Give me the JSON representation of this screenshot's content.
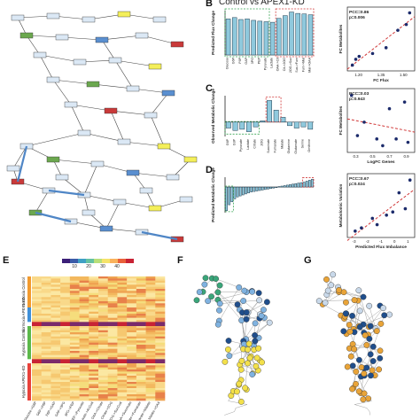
{
  "panels": {
    "B": "B",
    "C": "C",
    "D": "D",
    "E": "E",
    "F": "F",
    "G": "G"
  },
  "panel_b_title": "Control vs APEX1-KD",
  "map_labels": [],
  "heatmap": {
    "row_groups": [
      "Normoxia Control",
      "Normoxia APEX1-KD",
      "Hypoxia Control",
      "Hypoxia APEX1-KD"
    ],
    "row_group_colors": [
      "#f29a2e",
      "#3f8fd8",
      "#5bb84a",
      "#e8413a"
    ],
    "colorbar_ticks": [
      "10",
      "20",
      "30",
      "40"
    ],
    "columns": [
      "Glucose->G6P",
      "G6P->F6P",
      "F6P->GAP",
      "GAP->3PG",
      "3PG->PEP",
      "PEP->Pyruvate",
      "Pyruvate->AcCoA",
      "OAA->Citrate",
      "Citrate->2OG",
      "2OG->SucCoA",
      "SucCoA->Succinate",
      "Succinate->Fumarate",
      "Fumarate->Malate",
      "Malate->OAA"
    ]
  },
  "chart_data": [
    {
      "type": "bar",
      "panel": "B",
      "title": "Control vs APEX1-KD",
      "ylabel": "Predicted Flux Change",
      "categories": [
        "Glucose",
        "G6P",
        "F6P",
        "GAP",
        "3PG",
        "PEP",
        "Pyruvate",
        "Lactate",
        "OAA->Cit",
        "Cit->2OG",
        "2OG->Suc",
        "Suc->Fum",
        "Fum->Mal",
        "Mal->OAA"
      ],
      "values": [
        1.3,
        1.35,
        1.28,
        1.3,
        1.25,
        1.22,
        1.2,
        1.18,
        1.32,
        1.42,
        1.55,
        1.5,
        1.48,
        1.45
      ],
      "ylim": [
        0,
        1.6
      ],
      "highlight_green": [
        0,
        6
      ],
      "highlight_red": [
        8,
        13
      ]
    },
    {
      "type": "scatter",
      "panel": "B-right",
      "xlabel": "FC Flux",
      "ylabel": "FC Metabolites",
      "annotation": [
        "PCC=0.86",
        "p=0.006"
      ],
      "x_ticks": [
        "1.20",
        "1.35",
        "1.50"
      ],
      "points": [
        [
          1.18,
          0.6
        ],
        [
          1.2,
          0.8
        ],
        [
          1.22,
          0.9
        ],
        [
          1.3,
          1.0
        ],
        [
          1.38,
          1.2
        ],
        [
          1.45,
          1.8
        ],
        [
          1.5,
          2.0
        ],
        [
          1.52,
          2.4
        ]
      ],
      "xlim": [
        1.15,
        1.55
      ],
      "ylim": [
        0.4,
        2.6
      ]
    },
    {
      "type": "bar",
      "panel": "C",
      "ylabel": "Observed Metabolic Change",
      "categories": [
        "G6P",
        "G3P",
        "Pyruvate",
        "Lactate",
        "Citrate",
        "2OG",
        "Succinate",
        "Fumarate",
        "Malate",
        "Glutamine",
        "Glutamate",
        "Serine",
        "Ornithine"
      ],
      "values": [
        -0.5,
        -0.7,
        -0.6,
        -0.8,
        -0.4,
        0.1,
        1.8,
        1.0,
        0.4,
        -0.3,
        -0.5,
        -0.4,
        -0.6
      ],
      "ylim": [
        -1.2,
        2.2
      ]
    },
    {
      "type": "scatter",
      "panel": "C-right",
      "xlabel": "LogFC Genes",
      "ylabel": "FC Metabolites",
      "annotation": [
        "PCC=0.03",
        "p=0.943"
      ],
      "x_ticks": [
        "0.3",
        "0.5",
        "0.7",
        "0.9"
      ],
      "points": [
        [
          0.25,
          2.2
        ],
        [
          0.32,
          1.0
        ],
        [
          0.4,
          1.4
        ],
        [
          0.55,
          0.9
        ],
        [
          0.62,
          0.7
        ],
        [
          0.7,
          1.8
        ],
        [
          0.78,
          0.9
        ],
        [
          0.88,
          2.0
        ],
        [
          0.92,
          0.8
        ]
      ],
      "xlim": [
        0.2,
        1.0
      ],
      "ylim": [
        0.5,
        2.4
      ]
    },
    {
      "type": "bar",
      "panel": "D",
      "ylabel": "Predicted Metabolic Change",
      "values": [
        -2.4,
        -1.8,
        -1.5,
        -1.2,
        -1.0,
        -0.9,
        -0.8,
        -0.7,
        -0.6,
        -0.5,
        -0.45,
        -0.4,
        -0.35,
        -0.3,
        -0.25,
        -0.2,
        -0.15,
        -0.1,
        -0.05,
        0.05,
        0.1,
        0.15,
        0.2,
        0.25,
        0.3,
        0.35,
        0.4,
        0.45,
        0.5,
        0.6,
        0.7,
        0.8
      ],
      "ylim": [
        -2.6,
        1.0
      ]
    },
    {
      "type": "scatter",
      "panel": "D-right",
      "xlabel": "Predicted Flux Imbalance",
      "ylabel": "Metabolomic Variation",
      "annotation": [
        "PCC=0.67",
        "p=0.024"
      ],
      "x_ticks": [
        "-3",
        "-2",
        "-1",
        "0",
        "1"
      ],
      "points": [
        [
          -2.6,
          0.4
        ],
        [
          -2.2,
          0.5
        ],
        [
          -1.5,
          0.8
        ],
        [
          -1.2,
          0.6
        ],
        [
          -0.6,
          0.9
        ],
        [
          -0.2,
          1.0
        ],
        [
          0.2,
          1.6
        ],
        [
          0.6,
          1.1
        ],
        [
          0.9,
          2.0
        ]
      ],
      "xlim": [
        -3.1,
        1.2
      ],
      "ylim": [
        0.2,
        2.2
      ]
    }
  ],
  "network": {
    "colors": {
      "yellow": "#f3e04a",
      "blue": "#7fb2e0",
      "dark_blue": "#1f4e8c",
      "green": "#3aa67a",
      "orange": "#e9a438",
      "light": "#c9d9ea"
    }
  }
}
